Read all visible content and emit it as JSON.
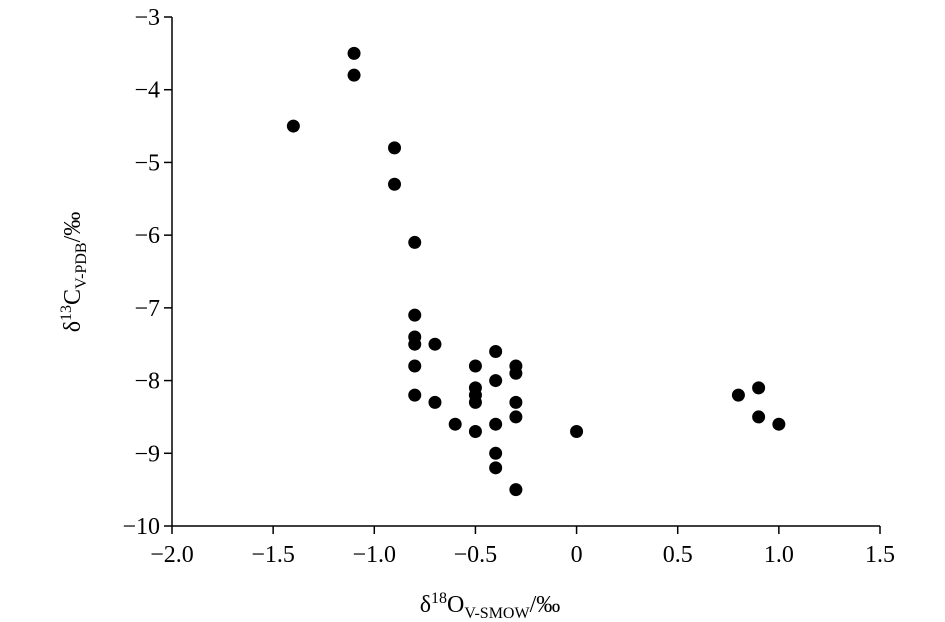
{
  "chart_data": {
    "type": "scatter",
    "x_label": {
      "prefix": "δ",
      "sup": "18",
      "main": "O",
      "sub": "V-SMOW",
      "suffix": "/‰"
    },
    "y_label": {
      "prefix": "δ",
      "sup": "13",
      "main": "C",
      "sub": "V-PDB",
      "suffix": "/‰"
    },
    "xlim": [
      -2.0,
      1.5
    ],
    "ylim": [
      -10,
      -3
    ],
    "xticks": [
      {
        "value": -2.0,
        "label": "−2.0"
      },
      {
        "value": -1.5,
        "label": "−1.5"
      },
      {
        "value": -1.0,
        "label": "−1.0"
      },
      {
        "value": -0.5,
        "label": "−0.5"
      },
      0,
      0.5,
      {
        "value": 1.0,
        "label": "1.0"
      },
      1.5
    ],
    "yticks": [
      {
        "value": -10,
        "label": "−10"
      },
      {
        "value": -9,
        "label": "−9"
      },
      {
        "value": -8,
        "label": "−8"
      },
      {
        "value": -7,
        "label": "−7"
      },
      {
        "value": -6,
        "label": "−6"
      },
      {
        "value": -5,
        "label": "−5"
      },
      {
        "value": -4,
        "label": "−4"
      },
      {
        "value": -3,
        "label": "−3"
      }
    ],
    "color": "#000000",
    "x": [
      -1.4,
      -1.1,
      -1.1,
      -0.9,
      -0.9,
      -0.8,
      -0.8,
      -0.8,
      -0.8,
      -0.8,
      -0.8,
      -0.7,
      -0.7,
      -0.6,
      -0.5,
      -0.5,
      -0.5,
      -0.5,
      -0.5,
      -0.4,
      -0.4,
      -0.4,
      -0.4,
      -0.4,
      -0.3,
      -0.3,
      -0.3,
      -0.3,
      -0.3,
      0,
      0.8,
      0.9,
      0.9,
      1.0
    ],
    "y": [
      -4.5,
      -3.5,
      -3.8,
      -4.8,
      -5.3,
      -6.1,
      -7.1,
      -7.4,
      -7.5,
      -7.8,
      -8.2,
      -7.5,
      -8.3,
      -8.6,
      -7.8,
      -8.1,
      -8.2,
      -8.3,
      -8.7,
      -7.6,
      -8.0,
      -8.6,
      -9.0,
      -9.2,
      -7.8,
      -7.9,
      -8.3,
      -8.5,
      -9.5,
      -8.7,
      -8.2,
      -8.1,
      -8.5,
      -8.6
    ]
  }
}
